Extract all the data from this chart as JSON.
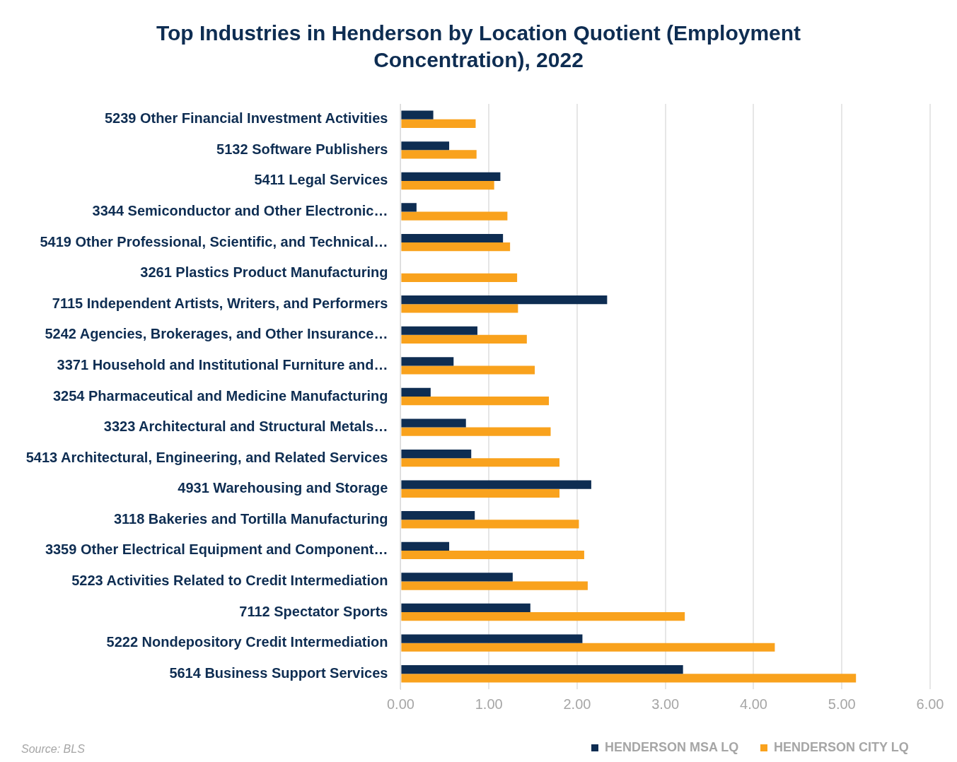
{
  "chart_data": {
    "type": "bar",
    "orientation": "horizontal",
    "title": "Top Industries in Henderson by Location Quotient (Employment Concentration), 2022",
    "categories": [
      "5239 Other Financial Investment Activities",
      "5132 Software Publishers",
      "5411 Legal Services",
      "3344 Semiconductor and Other Electronic…",
      "5419 Other Professional, Scientific, and Technical…",
      "3261 Plastics Product Manufacturing",
      "7115 Independent Artists, Writers, and Performers",
      "5242 Agencies, Brokerages, and Other Insurance…",
      "3371 Household and Institutional Furniture and…",
      "3254 Pharmaceutical and Medicine Manufacturing",
      "3323 Architectural and Structural Metals…",
      "5413 Architectural, Engineering, and Related Services",
      "4931 Warehousing and Storage",
      "3118 Bakeries and Tortilla Manufacturing",
      "3359 Other Electrical Equipment and Component…",
      "5223 Activities Related to Credit Intermediation",
      "7112 Spectator Sports",
      "5222 Nondepository Credit Intermediation",
      "5614 Business Support Services"
    ],
    "series": [
      {
        "name": "HENDERSON MSA LQ",
        "color": "#0e2d52",
        "values": [
          0.37,
          0.55,
          1.13,
          0.18,
          1.16,
          null,
          2.34,
          0.87,
          0.6,
          0.34,
          0.74,
          0.8,
          2.16,
          0.84,
          0.55,
          1.27,
          1.47,
          2.06,
          3.2
        ]
      },
      {
        "name": "HENDERSON CITY LQ",
        "color": "#f9a21d",
        "values": [
          0.85,
          0.86,
          1.06,
          1.21,
          1.24,
          1.32,
          1.33,
          1.43,
          1.52,
          1.68,
          1.7,
          1.8,
          1.8,
          2.02,
          2.08,
          2.12,
          3.22,
          4.24,
          5.16
        ]
      }
    ],
    "xlim": [
      0,
      6
    ],
    "xticks": [
      {
        "value": 0,
        "label": "0.00"
      },
      {
        "value": 1,
        "label": "1.00"
      },
      {
        "value": 2,
        "label": "2.00"
      },
      {
        "value": 3,
        "label": "3.00"
      },
      {
        "value": 4,
        "label": "4.00"
      },
      {
        "value": 5,
        "label": "5.00"
      },
      {
        "value": 6,
        "label": "6.00"
      }
    ],
    "grid": "x",
    "legend": "bottom right",
    "annotations": [
      "Source: BLS"
    ]
  }
}
